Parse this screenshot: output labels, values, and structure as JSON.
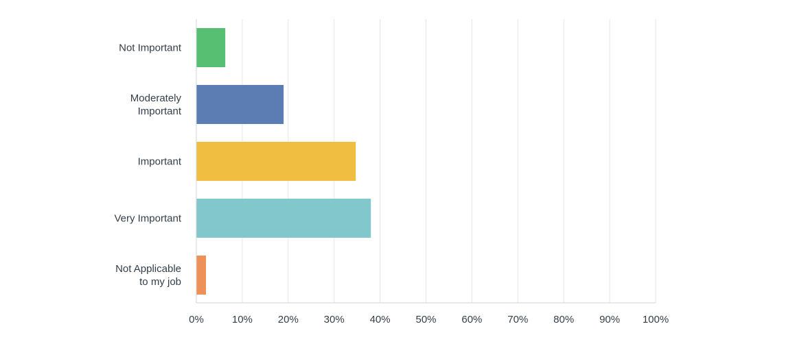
{
  "chart_data": {
    "type": "bar",
    "orientation": "horizontal",
    "categories": [
      [
        "Not Important"
      ],
      [
        "Moderately",
        "Important"
      ],
      [
        "Important"
      ],
      [
        "Very Important"
      ],
      [
        "Not Applicable",
        "to my job"
      ]
    ],
    "values": [
      6.3,
      19.0,
      34.7,
      38.0,
      2.1
    ],
    "colors": [
      "#57bf72",
      "#5b7db3",
      "#f0bf42",
      "#82c7cc",
      "#ee9158"
    ],
    "xlim": [
      0,
      100
    ],
    "xticks": [
      "0%",
      "10%",
      "20%",
      "30%",
      "40%",
      "50%",
      "60%",
      "70%",
      "80%",
      "90%",
      "100%"
    ],
    "grid": true,
    "title": "",
    "xlabel": "",
    "ylabel": ""
  }
}
